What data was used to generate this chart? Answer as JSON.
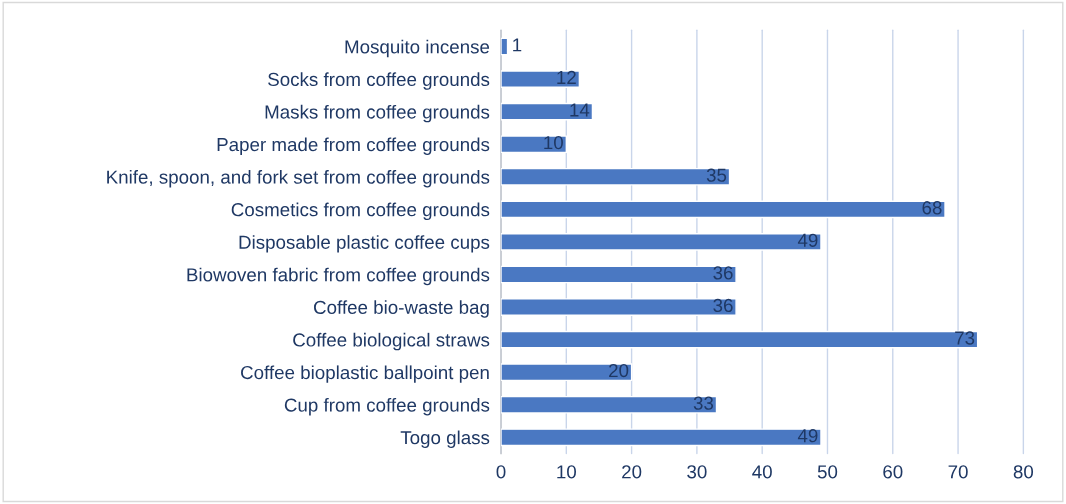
{
  "chart_data": {
    "type": "bar",
    "orientation": "horizontal",
    "categories": [
      "Mosquito incense",
      "Socks from coffee grounds",
      "Masks from coffee grounds",
      "Paper made from coffee grounds",
      "Knife, spoon, and fork set from coffee grounds",
      "Cosmetics from coffee grounds",
      "Disposable plastic coffee cups",
      "Biowoven fabric from coffee grounds",
      "Coffee bio-waste bag",
      "Coffee biological straws",
      "Coffee bioplastic ballpoint pen",
      "Cup from coffee grounds",
      "Togo glass"
    ],
    "values": [
      1,
      12,
      14,
      10,
      35,
      68,
      49,
      36,
      36,
      73,
      20,
      33,
      49
    ],
    "color": "#4a78c2",
    "xlim": [
      0,
      80
    ],
    "xticks": [
      0,
      10,
      20,
      30,
      40,
      50,
      60,
      70,
      80
    ],
    "grid": "x",
    "data_labels": true
  }
}
